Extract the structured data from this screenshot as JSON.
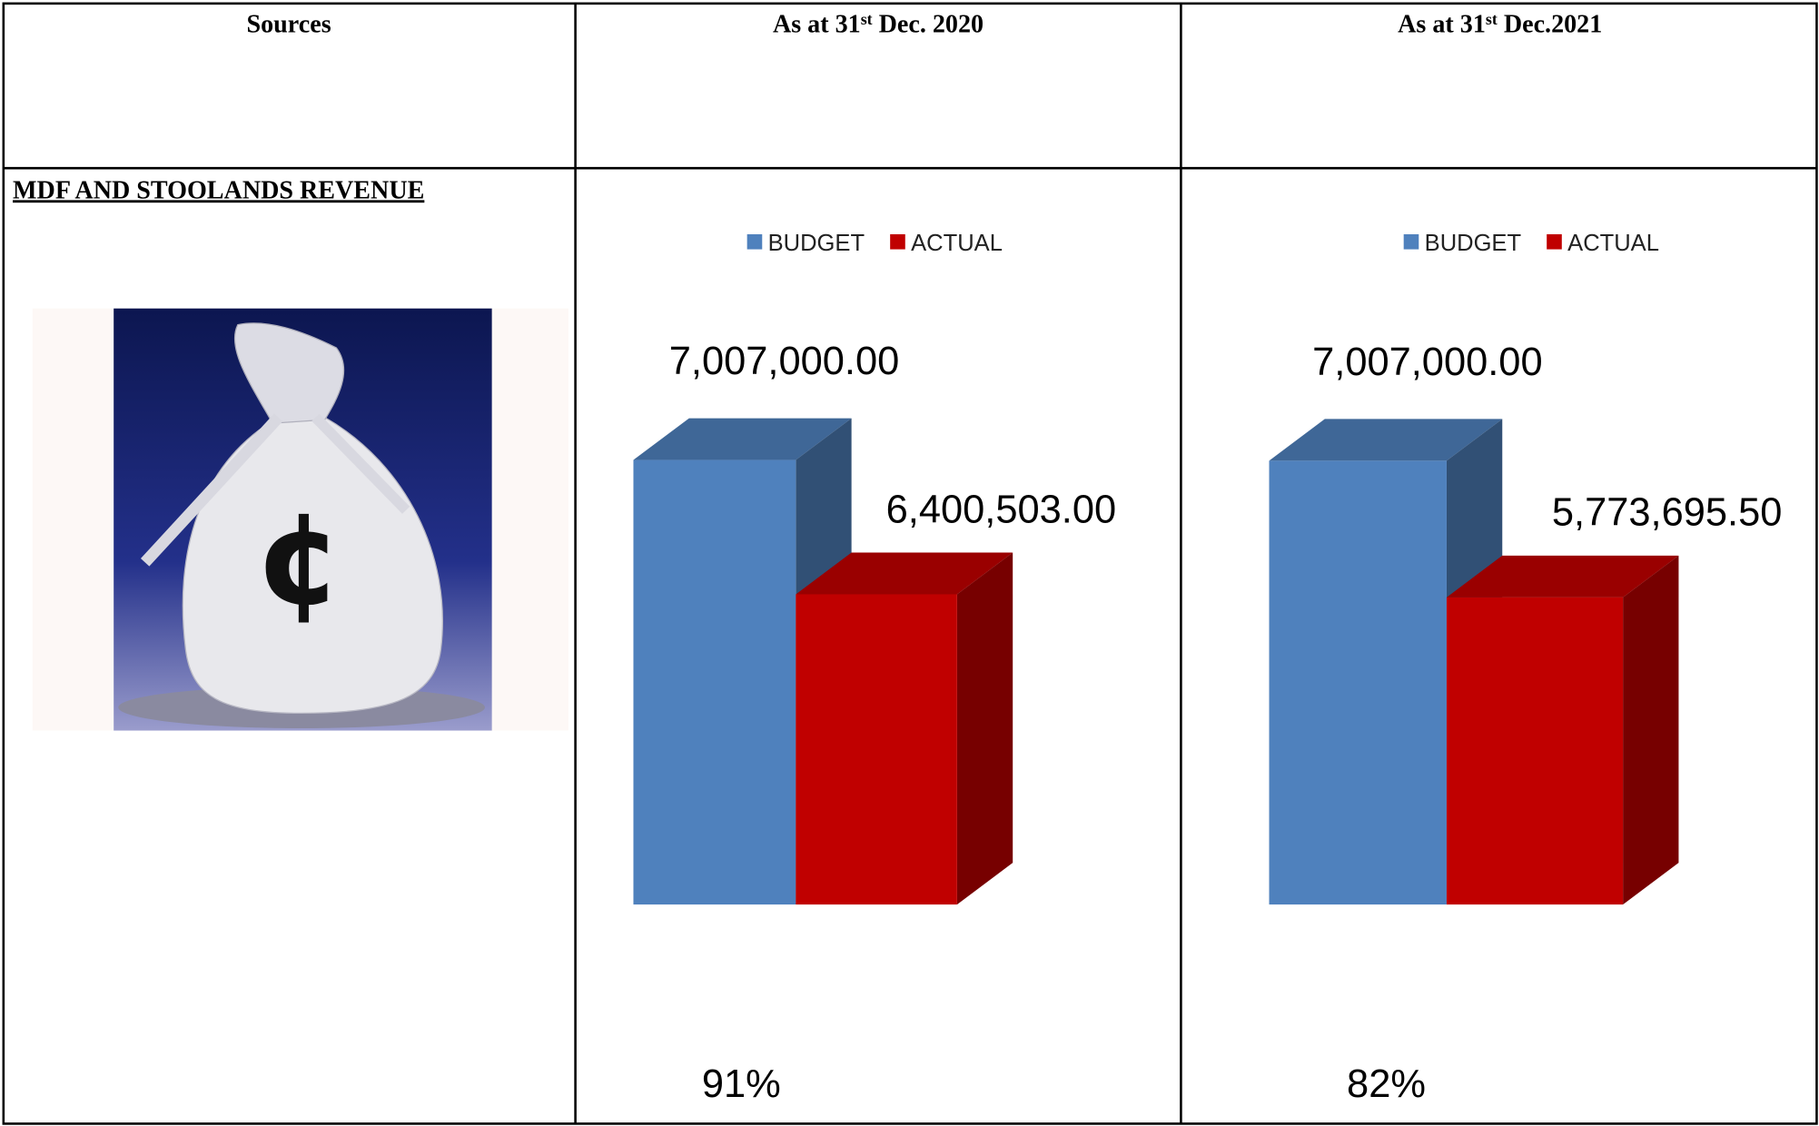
{
  "table": {
    "headers": [
      [
        "Sources"
      ],
      [
        "As at 31",
        "st",
        " Dec. 2020"
      ],
      [
        "As at 31",
        "st",
        " Dec.2021"
      ]
    ],
    "row_label": "MDF AND STOOLANDS REVENUE"
  },
  "chart_data": [
    {
      "type": "bar",
      "categories": [
        null
      ],
      "ylim": [
        5000000,
        8000000
      ],
      "legend": "top",
      "series": [
        {
          "name": "BUDGET",
          "color": "#4f81bd",
          "values": [
            7007000
          ],
          "value_labels": [
            "7,007,000.00"
          ]
        },
        {
          "name": "ACTUAL",
          "color": "#c00000",
          "values": [
            6400503
          ],
          "value_labels": [
            "6,400,503.00"
          ]
        }
      ],
      "annotation": "91%"
    },
    {
      "type": "bar",
      "categories": [
        null
      ],
      "ylim": [
        3000000,
        9000000
      ],
      "legend": "top",
      "series": [
        {
          "name": "BUDGET",
          "color": "#4f81bd",
          "values": [
            7007000
          ],
          "value_labels": [
            "7,007,000.00"
          ]
        },
        {
          "name": "ACTUAL",
          "color": "#c00000",
          "values": [
            5773695.5
          ],
          "value_labels": [
            "5,773,695.50"
          ]
        }
      ],
      "annotation": "82%"
    }
  ]
}
